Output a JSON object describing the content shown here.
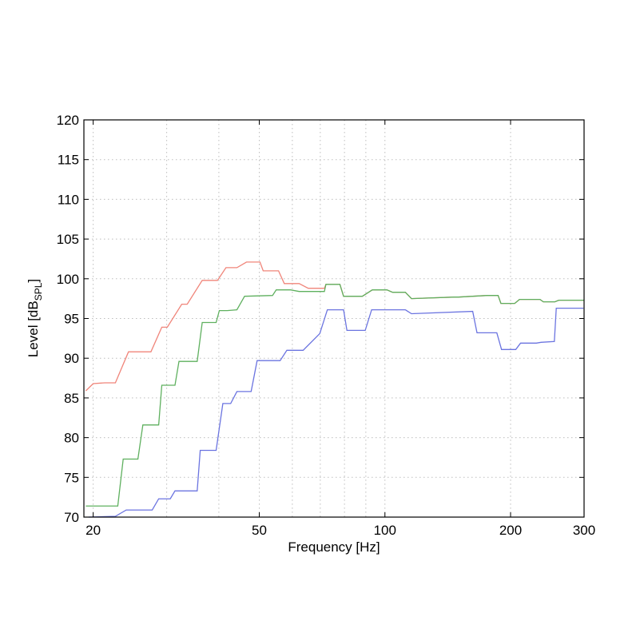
{
  "chart_data": {
    "type": "line",
    "xlabel": "Frequency [Hz]",
    "ylabel_main": "Level [dB",
    "ylabel_sub": "SPL",
    "ylabel_end": "]",
    "xscale": "log",
    "xlim": [
      19,
      300
    ],
    "ylim": [
      70,
      120
    ],
    "grid": true,
    "x_ticks": [
      20,
      50,
      100,
      200,
      300
    ],
    "x_tick_labels": [
      "20",
      "50",
      "100",
      "200",
      "300"
    ],
    "x_minor_grid": [
      30,
      40,
      60,
      70,
      80,
      90
    ],
    "y_ticks": [
      70,
      75,
      80,
      85,
      90,
      95,
      100,
      105,
      110,
      115,
      120
    ],
    "y_tick_labels": [
      "70",
      "75",
      "80",
      "85",
      "90",
      "95",
      "100",
      "105",
      "110",
      "115",
      "120"
    ],
    "series": [
      {
        "color": "#f0857a",
        "x": [
          19.2,
          20,
          21.3,
          21.6,
          22.6,
          24.3,
          25.3,
          26.9,
          27.5,
          29.2,
          30.1,
          32.6,
          33.6,
          36.5,
          37.1,
          39.7,
          41.6,
          41.9,
          44.2,
          46.6,
          48.1,
          50.2,
          51.1,
          55.6,
          57.4,
          62.3,
          65.5,
          71.6,
          72.2,
          78,
          79.6,
          88.3,
          93.3,
          101.1,
          104.3,
          111.9,
          115.8,
          146.8,
          150.1,
          162.3,
          175.8,
          186.7,
          189.6,
          204.6,
          210.1,
          235.2,
          239.6,
          255.4,
          261,
          300
        ],
        "y": [
          85.9,
          86.8,
          86.9,
          86.9,
          86.9,
          90.8,
          90.8,
          90.8,
          90.8,
          93.9,
          93.9,
          96.8,
          96.8,
          99.8,
          99.8,
          99.8,
          101.4,
          101.4,
          101.4,
          102.1,
          102.1,
          102.1,
          101,
          101,
          99.4,
          99.4,
          98.8,
          98.8,
          99.3,
          99.3,
          97.8,
          97.8,
          98.6,
          98.6,
          98.3,
          98.3,
          97.5,
          97.7,
          97.7,
          97.8,
          97.9,
          97.9,
          96.9,
          96.9,
          97.4,
          97.4,
          97.1,
          97.1,
          97.3,
          97.3
        ]
      },
      {
        "color": "#5fb05f",
        "x": [
          19.2,
          22.9,
          23.6,
          25.6,
          26.3,
          28.7,
          29.2,
          31.4,
          32.1,
          35.5,
          36.5,
          39.4,
          40.1,
          41.9,
          44.2,
          46.1,
          53.8,
          54.9,
          59.4,
          62.3,
          67.4,
          71.6,
          72.2,
          78,
          79.6,
          88.3,
          93.3,
          101.1,
          104.3,
          111.9,
          115.8,
          146.8,
          150.1,
          162.3,
          175.8,
          186.7,
          189.6,
          204.6,
          210.1,
          235.2,
          239.6,
          255.4,
          261,
          300
        ],
        "y": [
          71.4,
          71.4,
          77.3,
          77.3,
          81.6,
          81.6,
          86.6,
          86.6,
          89.6,
          89.6,
          94.5,
          94.5,
          96,
          96,
          96.1,
          97.8,
          97.9,
          98.6,
          98.6,
          98.4,
          98.4,
          98.4,
          99.3,
          99.3,
          97.8,
          97.8,
          98.6,
          98.6,
          98.3,
          98.3,
          97.5,
          97.7,
          97.7,
          97.8,
          97.9,
          97.9,
          96.9,
          96.9,
          97.4,
          97.4,
          97.1,
          97.1,
          97.3,
          97.3
        ]
      },
      {
        "color": "#6b74e0",
        "x": [
          19.5,
          22.6,
          24,
          27.7,
          28.7,
          30.6,
          31.4,
          35.5,
          36.1,
          39.4,
          40.9,
          42.7,
          44.2,
          47.8,
          49.4,
          56.1,
          58.2,
          62.7,
          63.7,
          69.8,
          72.8,
          79.6,
          81.1,
          89.7,
          92.9,
          111.9,
          115.8,
          162.3,
          166.2,
          185.4,
          190.3,
          205.8,
          211.3,
          230.6,
          236.6,
          254.6,
          257.3,
          299
        ],
        "y": [
          70,
          70.1,
          70.9,
          70.9,
          72.3,
          72.3,
          73.3,
          73.3,
          78.4,
          78.4,
          84.3,
          84.3,
          85.8,
          85.8,
          89.7,
          89.7,
          91,
          91,
          91,
          93.1,
          96.1,
          96.1,
          93.5,
          93.5,
          96.1,
          96.1,
          95.6,
          95.9,
          93.2,
          93.2,
          91.1,
          91.1,
          91.9,
          91.9,
          92,
          92.1,
          96.3,
          96.3
        ]
      }
    ]
  }
}
